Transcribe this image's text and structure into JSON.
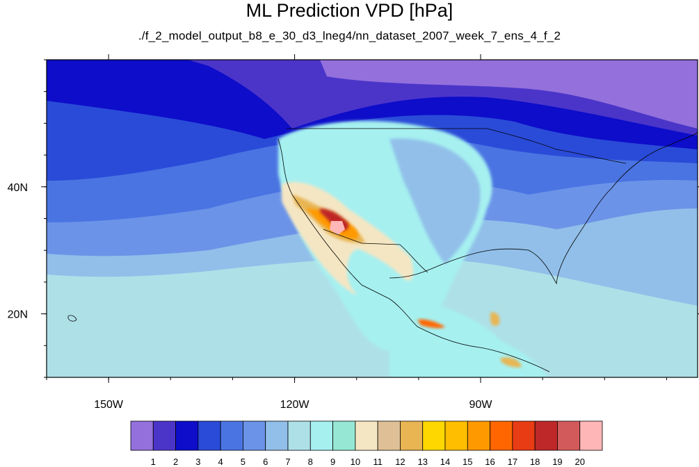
{
  "title": "ML Prediction VPD [hPa]",
  "subtitle": "./f_2_model_output_b8_e_30_d3_lneg4/nn_dataset_2007_week_7_ens_4_f_2",
  "chart_data": {
    "type": "heatmap",
    "map_extent": {
      "lon": [
        -160,
        -55
      ],
      "lat": [
        10,
        60
      ]
    },
    "x_ticks": [
      {
        "lon": -150,
        "label": "150W"
      },
      {
        "lon": -120,
        "label": "120W"
      },
      {
        "lon": -90,
        "label": "90W"
      }
    ],
    "y_ticks": [
      {
        "lat": 40,
        "label": "40N"
      },
      {
        "lat": 20,
        "label": "20N"
      }
    ],
    "colorbar": {
      "labels": [
        "1",
        "2",
        "3",
        "4",
        "5",
        "6",
        "7",
        "8",
        "9",
        "10",
        "11",
        "12",
        "13",
        "14",
        "15",
        "16",
        "17",
        "18",
        "19",
        "20"
      ],
      "colors": [
        "#9370db",
        "#4b35c9",
        "#0d0dca",
        "#2a4bd8",
        "#4a74e2",
        "#6b93e8",
        "#91bfe9",
        "#aee0e8",
        "#a6f0f0",
        "#96e8d4",
        "#f5e6c3",
        "#dfc096",
        "#e8b552",
        "#ffd700",
        "#ffbe00",
        "#ff9900",
        "#ff6600",
        "#e83c14",
        "#be2828",
        "#d35a5a",
        "#ffb6b6"
      ]
    }
  }
}
